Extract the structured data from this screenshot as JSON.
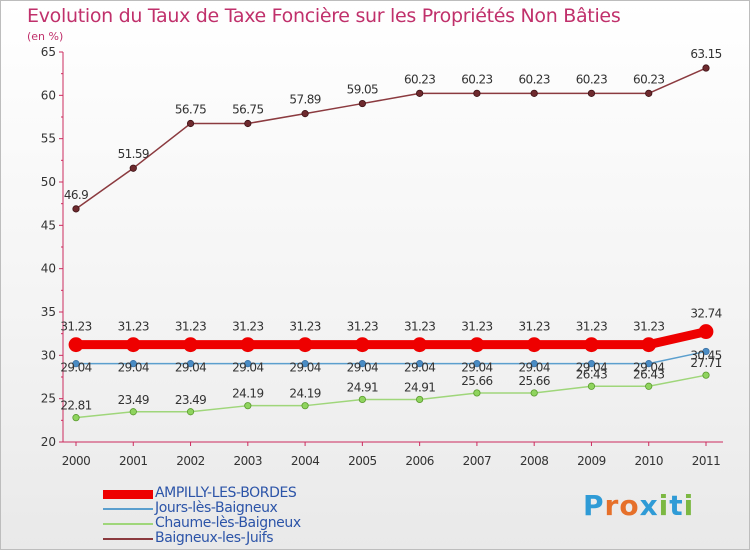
{
  "title": "Evolution du Taux de Taxe Foncière sur les Propriétés Non Bâties",
  "unit": "(en %)",
  "logo_text": "Proxiti",
  "logo_colors": [
    "#2f9bd6",
    "#e6702a",
    "#e6702a",
    "#2f9bd6",
    "#7cb842",
    "#2f9bd6",
    "#7cb842"
  ],
  "chart_data": {
    "type": "line",
    "title": "Evolution du Taux de Taxe Foncière sur les Propriétés Non Bâties",
    "ylabel": "(en %)",
    "xlabel": "",
    "ylim": [
      20,
      65
    ],
    "yticks": [
      "20",
      "25",
      "30",
      "35",
      "40",
      "45",
      "50",
      "55",
      "60",
      "65"
    ],
    "x": [
      "2000",
      "2001",
      "2002",
      "2003",
      "2004",
      "2005",
      "2006",
      "2007",
      "2008",
      "2009",
      "2010",
      "2011"
    ],
    "series": [
      {
        "name": "Baigneux-les-Juifs",
        "color": "#8b3a3f",
        "values": [
          46.9,
          51.59,
          56.75,
          56.75,
          57.89,
          59.05,
          60.23,
          60.23,
          60.23,
          60.23,
          60.23,
          63.15
        ],
        "labels": [
          "46.9",
          "51.59",
          "56.75",
          "56.75",
          "57.89",
          "59.05",
          "60.23",
          "60.23",
          "60.23",
          "60.23",
          "60.23",
          "63.15"
        ]
      },
      {
        "name": "Jours-lès-Baigneux",
        "color": "#5b9fce",
        "values": [
          29.04,
          29.04,
          29.04,
          29.04,
          29.04,
          29.04,
          29.04,
          29.04,
          29.04,
          29.04,
          29.04,
          30.45
        ],
        "labels": [
          "29.04",
          "29.04",
          "29.04",
          "29.04",
          "29.04",
          "29.04",
          "29.04",
          "29.04",
          "29.04",
          "29.04",
          "29.04",
          "30.45"
        ]
      },
      {
        "name": "Chaume-lès-Baigneux",
        "color": "#9fd67a",
        "values": [
          22.81,
          23.49,
          23.49,
          24.19,
          24.19,
          24.91,
          24.91,
          25.66,
          25.66,
          26.43,
          26.43,
          27.71
        ],
        "labels": [
          "22.81",
          "23.49",
          "23.49",
          "24.19",
          "24.19",
          "24.91",
          "24.91",
          "25.66",
          "25.66",
          "26.43",
          "26.43",
          "27.71"
        ]
      },
      {
        "name": "AMPILLY-LES-BORDES",
        "color": "#ee0000",
        "values": [
          31.23,
          31.23,
          31.23,
          31.23,
          31.23,
          31.23,
          31.23,
          31.23,
          31.23,
          31.23,
          31.23,
          32.74
        ],
        "labels": [
          "31.23",
          "31.23",
          "31.23",
          "31.23",
          "31.23",
          "31.23",
          "31.23",
          "31.23",
          "31.23",
          "31.23",
          "31.23",
          "32.74"
        ]
      }
    ],
    "legend": [
      {
        "name": "AMPILLY-LES-BORDES",
        "color": "#ee0000",
        "thick": true
      },
      {
        "name": "Jours-lès-Baigneux",
        "color": "#5b9fce",
        "thick": false
      },
      {
        "name": "Chaume-lès-Baigneux",
        "color": "#9fd67a",
        "thick": false
      },
      {
        "name": "Baigneux-les-Juifs",
        "color": "#8b3a3f",
        "thick": false
      }
    ],
    "legend_position": "bottom-left",
    "grid": false
  }
}
